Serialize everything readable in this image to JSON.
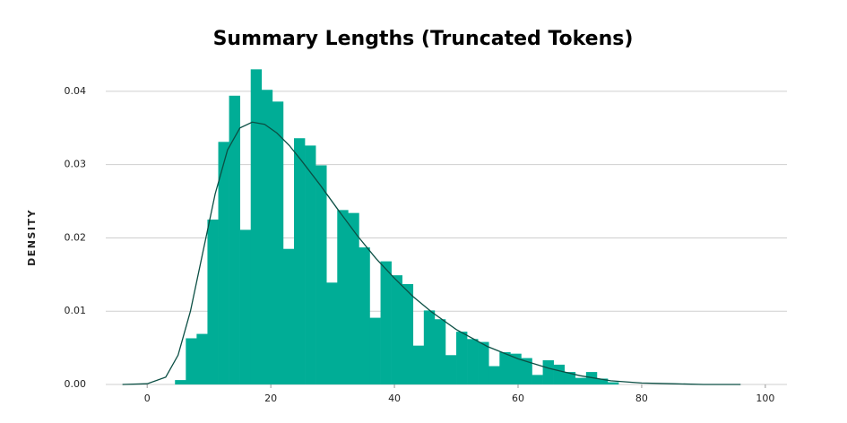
{
  "chart_data": {
    "type": "histogram",
    "title": "Summary Lengths (Truncated Tokens)",
    "y_label": "DENSITY",
    "bins": [
      4.5,
      6.25,
      8,
      9.75,
      11.5,
      13.25,
      15,
      16.75,
      18.5,
      20.25,
      22,
      23.75,
      25.5,
      27.25,
      29,
      30.75,
      32.5,
      34.25,
      36,
      37.75,
      39.5,
      41.25,
      43,
      44.75,
      46.5,
      48.25,
      50,
      51.75,
      53.5,
      55.25,
      57,
      58.75,
      60.5,
      62.25,
      64,
      65.75,
      67.5,
      69.25,
      71,
      72.75,
      74.5,
      76.25
    ],
    "values": [
      0.0006,
      0.0063,
      0.0069,
      0.0225,
      0.0331,
      0.0394,
      0.0211,
      0.043,
      0.0402,
      0.0386,
      0.0185,
      0.0336,
      0.0326,
      0.0299,
      0.0139,
      0.0238,
      0.0234,
      0.0187,
      0.0091,
      0.0168,
      0.0149,
      0.0137,
      0.0053,
      0.0101,
      0.0089,
      0.004,
      0.0072,
      0.0062,
      0.0058,
      0.0025,
      0.0044,
      0.0042,
      0.0036,
      0.0013,
      0.0033,
      0.0027,
      0.0017,
      0.0009,
      0.0017,
      0.0008,
      0.0003
    ],
    "color": "#00ad96",
    "kde": {
      "color": "#0b4f44",
      "x": [
        -4,
        0,
        3,
        5,
        7,
        9,
        11,
        13,
        15,
        17,
        19,
        21,
        23,
        25,
        28,
        31,
        34,
        37,
        40,
        43,
        46,
        50,
        55,
        60,
        65,
        70,
        75,
        80,
        85,
        90,
        96
      ],
      "values": [
        0,
        0.0001,
        0.001,
        0.004,
        0.01,
        0.018,
        0.026,
        0.032,
        0.035,
        0.0358,
        0.0355,
        0.0343,
        0.0326,
        0.0305,
        0.0272,
        0.0237,
        0.0203,
        0.0172,
        0.0145,
        0.012,
        0.0099,
        0.0075,
        0.0052,
        0.0035,
        0.0022,
        0.0012,
        0.0005,
        0.0002,
        0.0001,
        0,
        0
      ]
    },
    "xlim": [
      -6.7,
      103.5
    ],
    "xticks": [
      0,
      20,
      40,
      60,
      80,
      100
    ],
    "ylim": [
      0,
      0.045
    ],
    "yticks": [
      {
        "value": 0,
        "label": "0.00"
      },
      0.01,
      0.02,
      0.03,
      0.04
    ],
    "grid": true
  }
}
